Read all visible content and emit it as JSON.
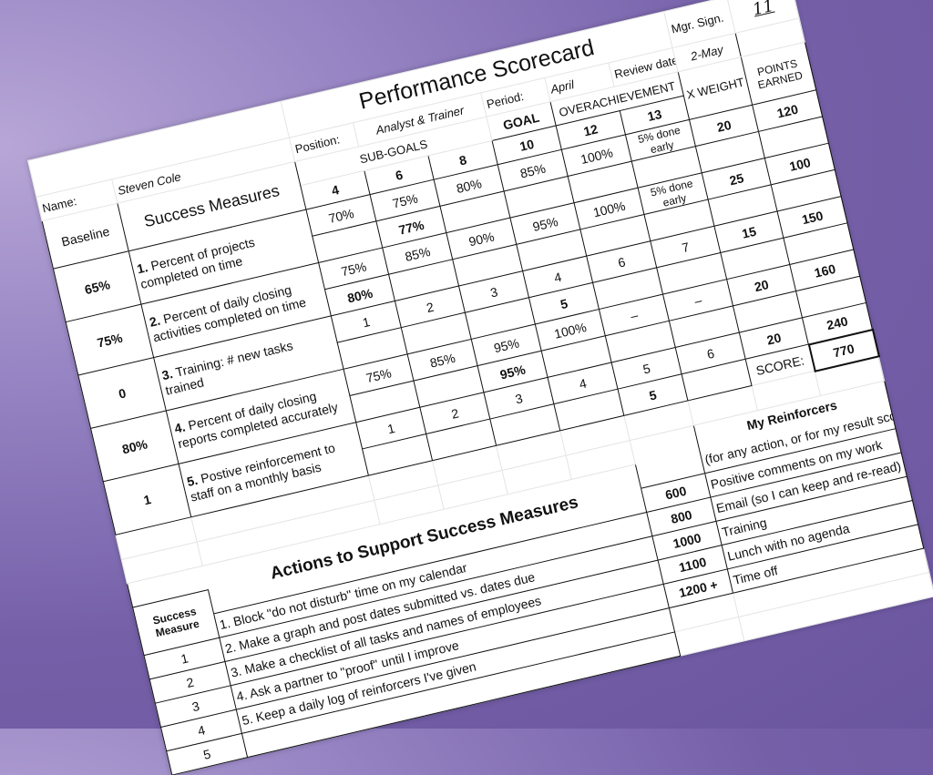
{
  "title": "Performance Scorecard",
  "header": {
    "name_label": "Name:",
    "name": "Steven Cole",
    "position_label": "Position:",
    "position": "Analyst & Trainer",
    "period_label": "Period:",
    "period": "April",
    "review_label": "Review date",
    "review_date": "2-May",
    "mgr_label": "Mgr. Sign.",
    "mgr_sign": "11"
  },
  "columns": {
    "baseline": "Baseline",
    "success_measures": "Success Measures",
    "sub_goals": "SUB-GOALS",
    "goal": "GOAL",
    "overachievement": "OVERACHIEVEMENT",
    "weight": "X WEIGHT",
    "points": "POINTS EARNED",
    "levels": [
      "4",
      "6",
      "8",
      "10",
      "12",
      "13"
    ]
  },
  "measures": [
    {
      "number": "1.",
      "label": "Percent of projects completed on time",
      "baseline": "65%",
      "targets": [
        "70%",
        "75%",
        "80%",
        "85%",
        "100%",
        "5% done early"
      ],
      "actual": [
        "",
        "77%",
        "",
        "",
        "",
        ""
      ],
      "weight": "20",
      "points": "120"
    },
    {
      "number": "2.",
      "label": "Percent of daily closing activities completed on time",
      "baseline": "75%",
      "targets": [
        "75%",
        "85%",
        "90%",
        "95%",
        "100%",
        "5% done early"
      ],
      "actual": [
        "80%",
        "",
        "",
        "",
        "",
        ""
      ],
      "weight": "25",
      "points": "100"
    },
    {
      "number": "3.",
      "label": "Training: # new tasks trained",
      "baseline": "0",
      "targets": [
        "1",
        "2",
        "3",
        "4",
        "6",
        "7"
      ],
      "actual": [
        "",
        "",
        "",
        "5",
        "",
        ""
      ],
      "weight": "15",
      "points": "150"
    },
    {
      "number": "4.",
      "label": "Percent of daily closing reports completed accurately",
      "baseline": "80%",
      "targets": [
        "75%",
        "85%",
        "95%",
        "100%",
        "–",
        "–"
      ],
      "actual": [
        "",
        "",
        "95%",
        "",
        "",
        ""
      ],
      "weight": "20",
      "points": "160"
    },
    {
      "number": "5.",
      "label": "Postive reinforcement to staff on a monthly basis",
      "baseline": "1",
      "targets": [
        "1",
        "2",
        "3",
        "4",
        "5",
        "6"
      ],
      "actual": [
        "",
        "",
        "",
        "",
        "5",
        ""
      ],
      "weight": "20",
      "points": "240"
    }
  ],
  "score": {
    "label": "SCORE:",
    "value": "770"
  },
  "actions": {
    "title": "Actions to Support Success Measures",
    "measure_header": "Success Measure",
    "items": [
      {
        "measure": "1",
        "text": "1. Block \"do not disturb\" time on my calendar"
      },
      {
        "measure": "2",
        "text": "2. Make a graph and post dates submitted vs. dates due"
      },
      {
        "measure": "3",
        "text": "3. Make a checklist of all tasks and names of employees"
      },
      {
        "measure": "4",
        "text": "4. Ask a partner to \"proof\" until I improve"
      },
      {
        "measure": "5",
        "text": "5. Keep a daily log of reinforcers I've given"
      }
    ]
  },
  "reinforcers": {
    "title": "My Reinforcers",
    "subtitle": "(for any action, or for my result score)",
    "items": [
      {
        "threshold": "600",
        "reward": "Positive comments on my work"
      },
      {
        "threshold": "800",
        "reward": "Email (so I can keep and re-read)"
      },
      {
        "threshold": "1000",
        "reward": "Training"
      },
      {
        "threshold": "1100",
        "reward": "Lunch with no agenda"
      },
      {
        "threshold": "1200 +",
        "reward": "Time off"
      }
    ]
  }
}
